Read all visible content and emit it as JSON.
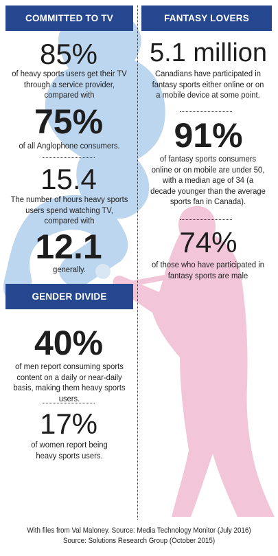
{
  "committed": {
    "header": "COMMITTED TO TV",
    "stat1": "85%",
    "text1": "of heavy sports users get their TV through a service provider, compared with",
    "stat2": "75%",
    "text2": "of all Anglophone consumers.",
    "stat3": "15.4",
    "text3": "The number of hours heavy sports users spend watching TV, compared with",
    "stat4": "12.1",
    "text4": "generally."
  },
  "gender": {
    "header": "GENDER DIVIDE",
    "stat1": "40%",
    "text1": "of men report consuming sports content on a daily or near-daily basis, making them heavy sports users.",
    "stat2": "17%",
    "text2": "of women report being heavy sports users."
  },
  "fantasy": {
    "header": "FANTASY LOVERS",
    "stat1": "5.1 million",
    "text1": "Canadians have participated in fantasy sports either online or on a mobile device at some point.",
    "stat2": "91%",
    "text2": "of fantasy sports consumers online or on mobile are under 50, with a median age of 34 (a decade younger than the average sports fan in Canada).",
    "stat3": "74%",
    "text3": "of those who have participated in fantasy sports are male"
  },
  "footer": {
    "line1": "With files from Val Maloney. Source: Media Technology Monitor (July 2016)",
    "line2": "Source: Solutions Research Group (October 2015)"
  },
  "colors": {
    "header_bg": "#24478f",
    "blue_silhouette": "#bcd6ef",
    "pink_silhouette": "#f2c6d8"
  }
}
